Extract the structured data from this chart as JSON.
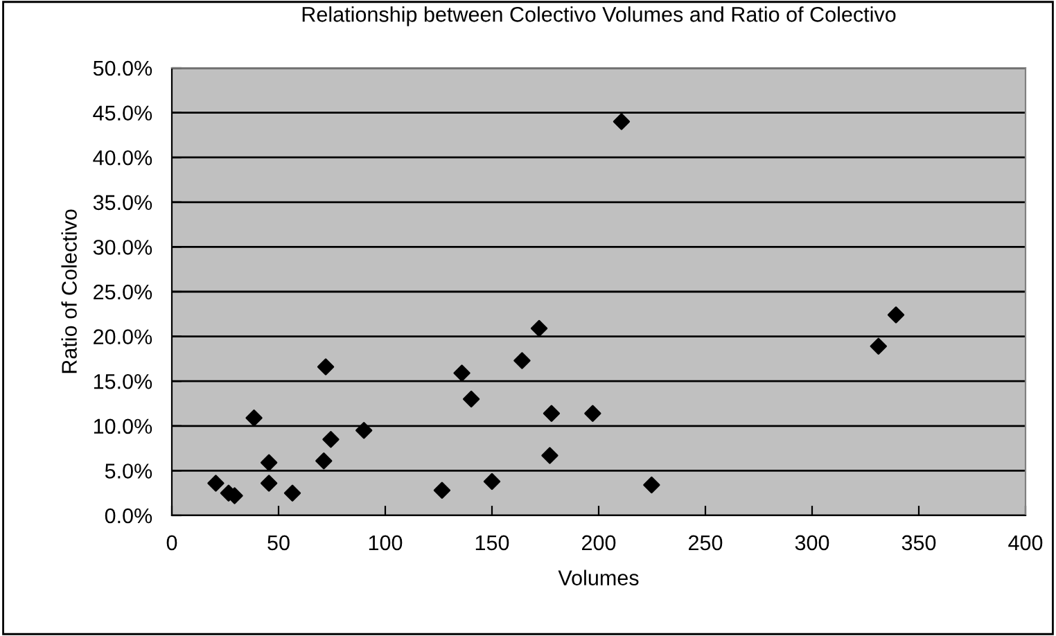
{
  "chart_data": {
    "type": "scatter",
    "title": "Relationship between Colectivo Volumes and Ratio of Colectivo",
    "xlabel": "Volumes",
    "ylabel": "Ratio of Colectivo",
    "x": [
      20.6,
      26.6,
      29.4,
      38.5,
      45.5,
      45.5,
      56.5,
      72.1,
      71.2,
      74.5,
      90.0,
      126.6,
      135.9,
      140.3,
      150.0,
      164.1,
      172.1,
      177.9,
      177.1,
      197.2,
      210.7,
      224.8,
      331.1,
      339.3
    ],
    "series": [
      {
        "color": "#000000",
        "values": [
          3.6,
          2.5,
          2.2,
          10.9,
          5.9,
          3.6,
          2.5,
          16.6,
          6.1,
          8.5,
          9.5,
          2.8,
          15.9,
          13.0,
          3.8,
          17.3,
          20.9,
          11.4,
          6.7,
          11.4,
          44.0,
          3.4,
          18.9,
          22.4
        ]
      }
    ],
    "marker": "diamond",
    "grid": "y",
    "legend": false,
    "xlim": [
      0,
      400
    ],
    "xticks": [
      0,
      50,
      100,
      150,
      200,
      250,
      300,
      350,
      400
    ],
    "ylim": [
      0,
      50
    ],
    "yticks": [
      {
        "value": 0,
        "label": "0.0%"
      },
      {
        "value": 5,
        "label": "5.0%"
      },
      {
        "value": 10,
        "label": "10.0%"
      },
      {
        "value": 15,
        "label": "15.0%"
      },
      {
        "value": 20,
        "label": "20.0%"
      },
      {
        "value": 25,
        "label": "25.0%"
      },
      {
        "value": 30,
        "label": "30.0%"
      },
      {
        "value": 35,
        "label": "35.0%"
      },
      {
        "value": 40,
        "label": "40.0%"
      },
      {
        "value": 45,
        "label": "45.0%"
      },
      {
        "value": 50,
        "label": "50.0%"
      }
    ]
  }
}
